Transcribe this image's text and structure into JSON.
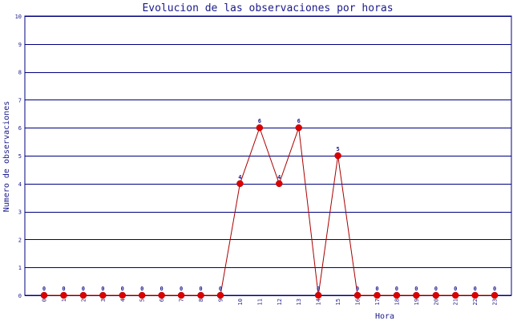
{
  "chart_data": {
    "type": "line",
    "title": "Evolucion de las observaciones por horas",
    "xlabel": "Hora",
    "ylabel": "Numero de observaciones",
    "x": [
      "0",
      "1",
      "2",
      "3",
      "4",
      "5",
      "6",
      "7",
      "8",
      "9",
      "10",
      "11",
      "12",
      "13",
      "14",
      "15",
      "16",
      "17",
      "18",
      "19",
      "20",
      "21",
      "22",
      "23"
    ],
    "series": [
      {
        "values": [
          0,
          0,
          0,
          0,
          0,
          0,
          0,
          0,
          0,
          0,
          4,
          6,
          4,
          6,
          0,
          5,
          0,
          0,
          0,
          0,
          0,
          0,
          0,
          0
        ]
      }
    ],
    "ylim": [
      0,
      10
    ],
    "yticks": [
      0,
      1,
      2,
      3,
      4,
      5,
      6,
      7,
      8,
      9,
      10
    ],
    "grid": true,
    "colors": {
      "line": "#aa0000",
      "marker": "#dd0000",
      "grid": "#000080",
      "text": "#1a1a8c"
    }
  }
}
